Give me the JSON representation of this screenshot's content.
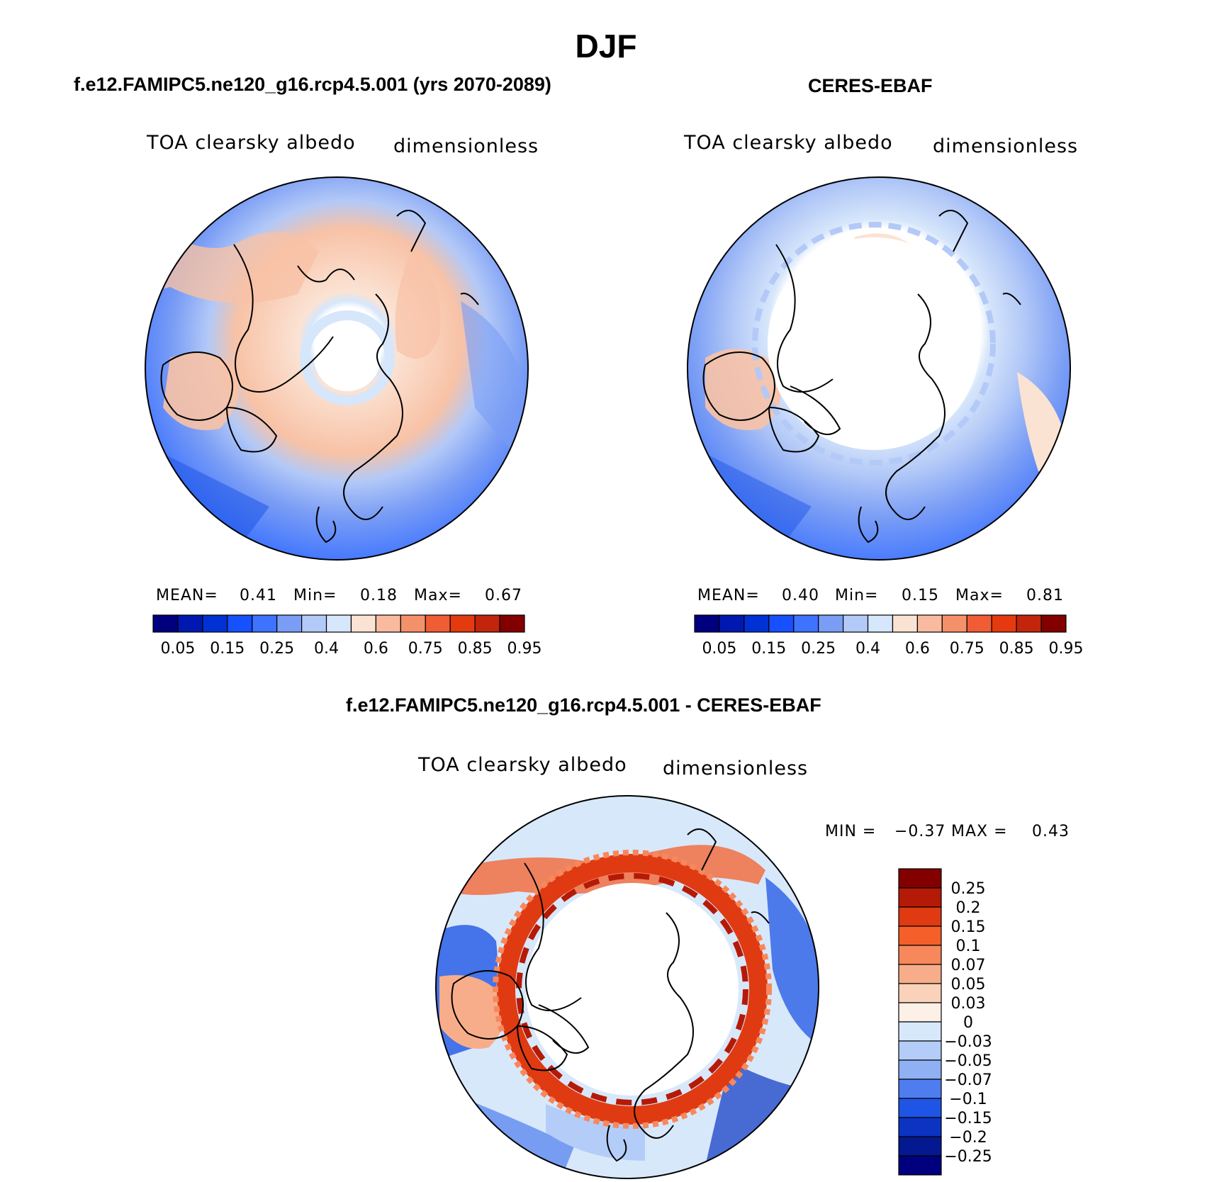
{
  "figure": {
    "title": "DJF"
  },
  "panels": [
    {
      "id": "model",
      "header": "f.e12.FAMIPC5.ne120_g16.rcp4.5.001 (yrs 2070-2089)",
      "variable": "TOA clearsky albedo",
      "units": "dimensionless",
      "stats": {
        "mean_label": "MEAN=",
        "mean": "0.41",
        "min_label": "Min=",
        "min": "0.18",
        "max_label": "Max=",
        "max": "0.67"
      },
      "colorbar": {
        "ticks": [
          "0.05",
          "0.15",
          "0.25",
          "0.4",
          "0.6",
          "0.75",
          "0.85",
          "0.95"
        ],
        "colors": [
          "#00007f",
          "#0018b0",
          "#0031d4",
          "#1650ff",
          "#3d73ff",
          "#7a9df5",
          "#b3c9f7",
          "#d6e6fb",
          "#fbe3d4",
          "#f8bba0",
          "#f5916a",
          "#f05c34",
          "#e43a10",
          "#c2250b",
          "#820000"
        ]
      }
    },
    {
      "id": "obs",
      "header": "CERES-EBAF",
      "variable": "TOA clearsky albedo",
      "units": "dimensionless",
      "stats": {
        "mean_label": "MEAN=",
        "mean": "0.40",
        "min_label": "Min=",
        "min": "0.15",
        "max_label": "Max=",
        "max": "0.81"
      },
      "colorbar": {
        "ticks": [
          "0.05",
          "0.15",
          "0.25",
          "0.4",
          "0.6",
          "0.75",
          "0.85",
          "0.95"
        ],
        "colors": [
          "#00007f",
          "#0018b0",
          "#0031d4",
          "#1650ff",
          "#3d73ff",
          "#7a9df5",
          "#b3c9f7",
          "#d6e6fb",
          "#fbe3d4",
          "#f8bba0",
          "#f5916a",
          "#f05c34",
          "#e43a10",
          "#c2250b",
          "#820000"
        ]
      }
    },
    {
      "id": "diff",
      "header": "f.e12.FAMIPC5.ne120_g16.rcp4.5.001 - CERES-EBAF",
      "variable": "TOA clearsky albedo",
      "units": "dimensionless",
      "stats": {
        "min_label": "MIN =",
        "min": "−0.37",
        "max_label": "MAX =",
        "max": "0.43"
      },
      "colorbar": {
        "ticks": [
          "0.25",
          "0.2",
          "0.15",
          "0.1",
          "0.07",
          "0.05",
          "0.03",
          "0",
          "−0.03",
          "−0.05",
          "−0.07",
          "−0.1",
          "−0.15",
          "−0.2",
          "−0.25"
        ],
        "colors": [
          "#820000",
          "#b51a06",
          "#df3a12",
          "#f55f2a",
          "#f7885c",
          "#f8ad8a",
          "#fad2ba",
          "#fdf0e6",
          "#d8e8fb",
          "#b4cdf8",
          "#8fb0f3",
          "#4f7df0",
          "#1f55e6",
          "#0c34c2",
          "#04198f",
          "#00007f"
        ]
      }
    }
  ]
}
